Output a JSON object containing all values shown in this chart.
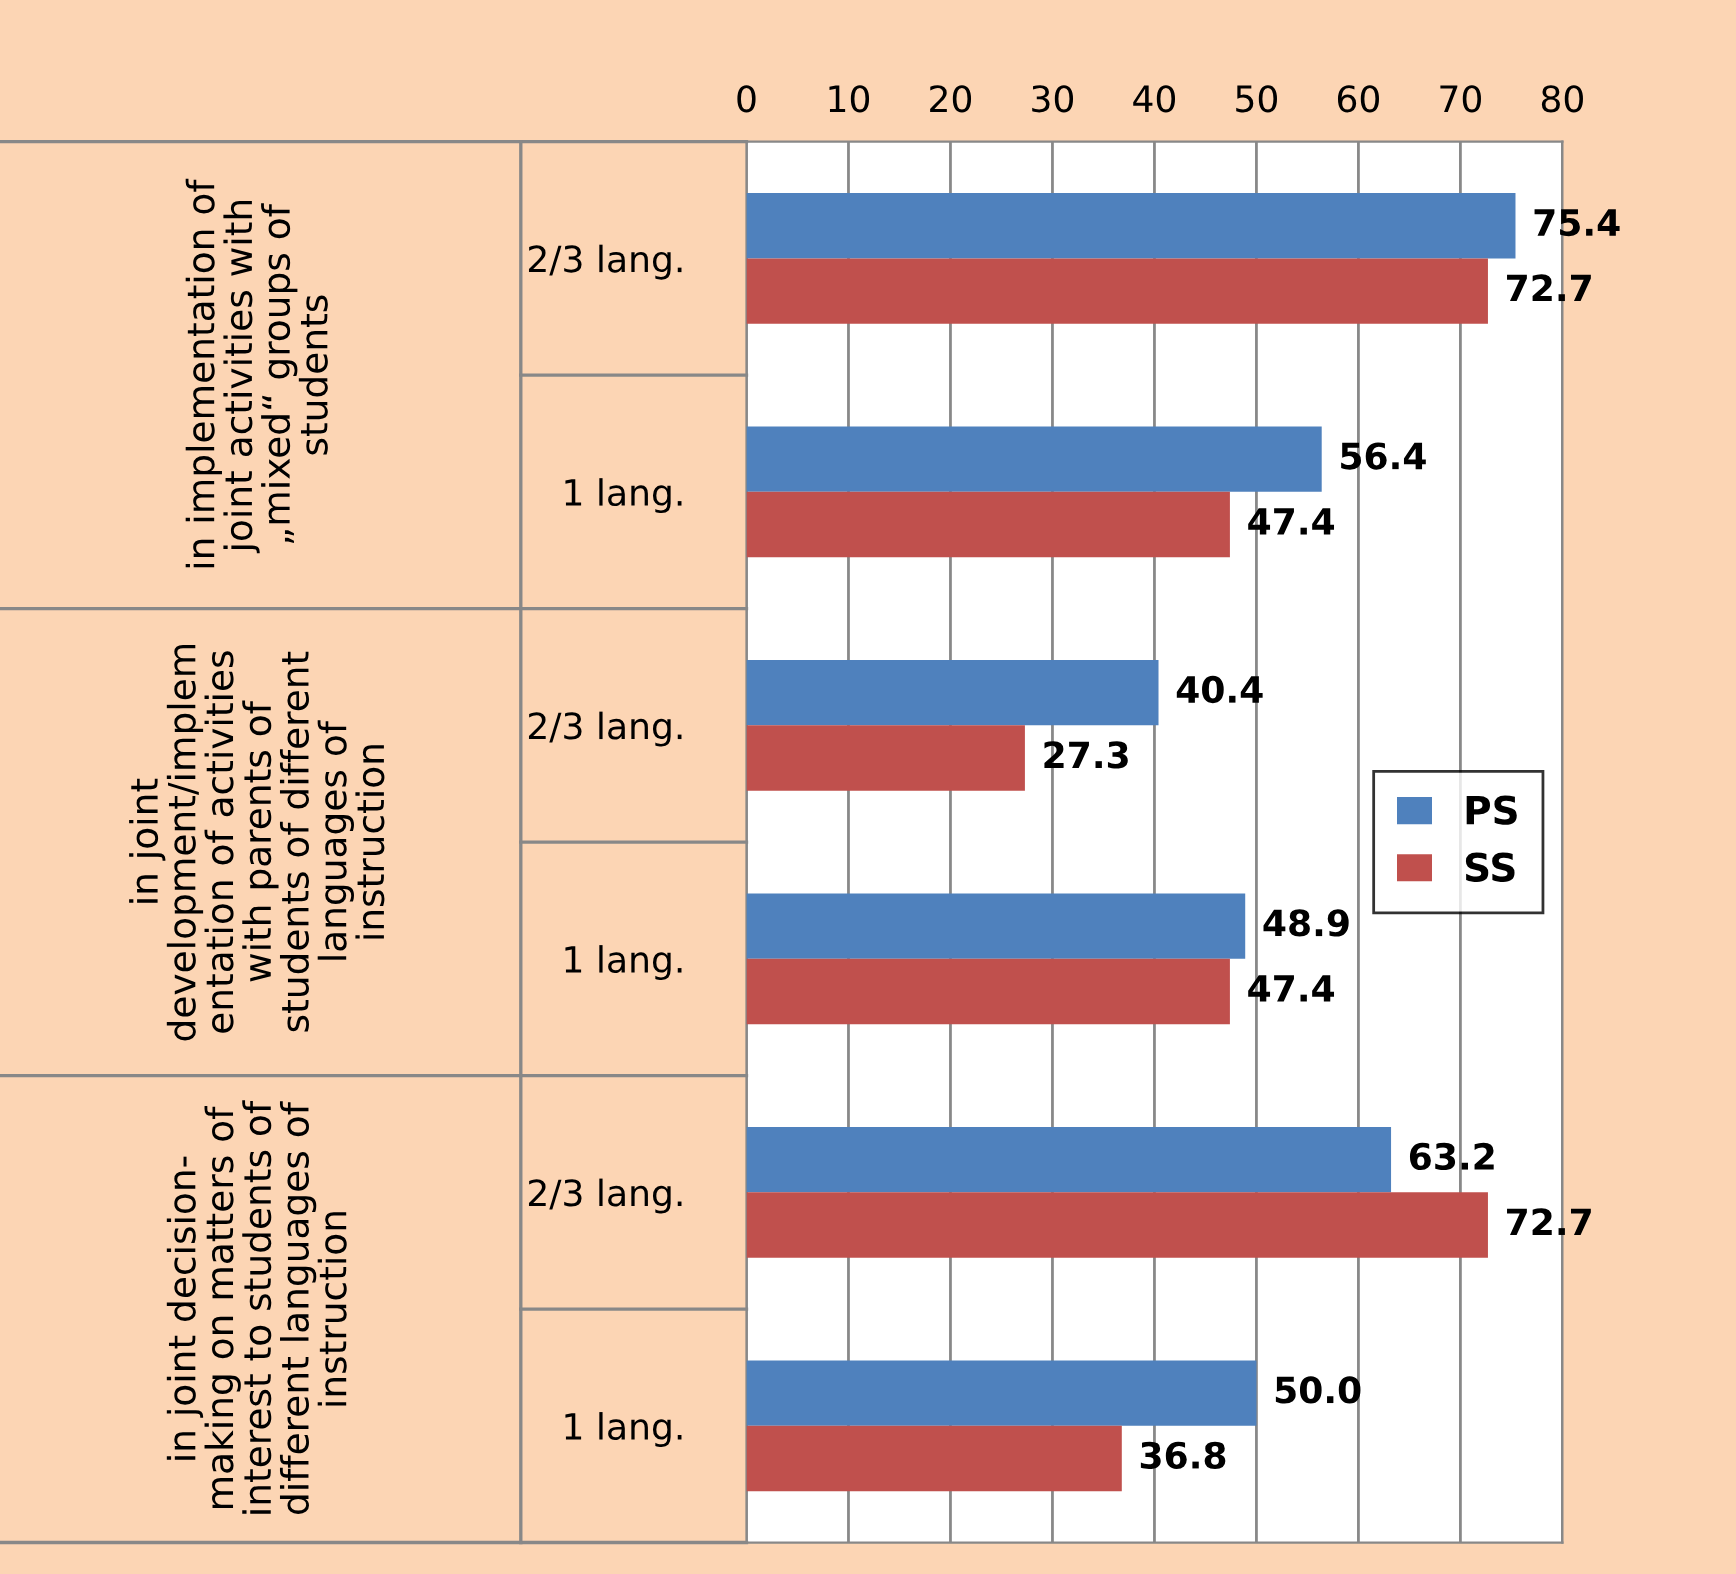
{
  "chart_data": {
    "type": "bar",
    "orientation": "horizontal",
    "categories": [
      "2/3 lang.",
      "1 lang.",
      "2/3 lang.",
      "1 lang.",
      "2/3 lang.",
      "1 lang."
    ],
    "series": [
      {
        "name": "PS",
        "color": "#4f81bd",
        "values": [
          75.4,
          56.4,
          40.4,
          48.9,
          63.2,
          50.0
        ]
      },
      {
        "name": "SS",
        "color": "#c0504d",
        "values": [
          72.7,
          47.4,
          27.3,
          47.4,
          72.7,
          36.8
        ]
      }
    ],
    "value_labels": [
      [
        "75.4",
        "56.4",
        "40.4",
        "48.9",
        "63.2",
        "50.0"
      ],
      [
        "72.7",
        "47.4",
        "27.3",
        "47.4",
        "72.7",
        "36.8"
      ]
    ],
    "annotations": [
      "in implementation of\njoint activities with\n„mixed“ groups of\nstudents",
      "in joint\ndevelopment/implem\nentation of activities\nwith parents of\nstudents of different\nlanguages of\ninstruction",
      "in joint decision-\nmaking on matters of\ninterest to students of\ndifferent languages of\ninstruction"
    ],
    "xlim": [
      0,
      80
    ],
    "xticks": [
      0,
      10,
      20,
      30,
      40,
      50,
      60,
      70,
      80
    ],
    "grid": "x",
    "legend": "right"
  }
}
